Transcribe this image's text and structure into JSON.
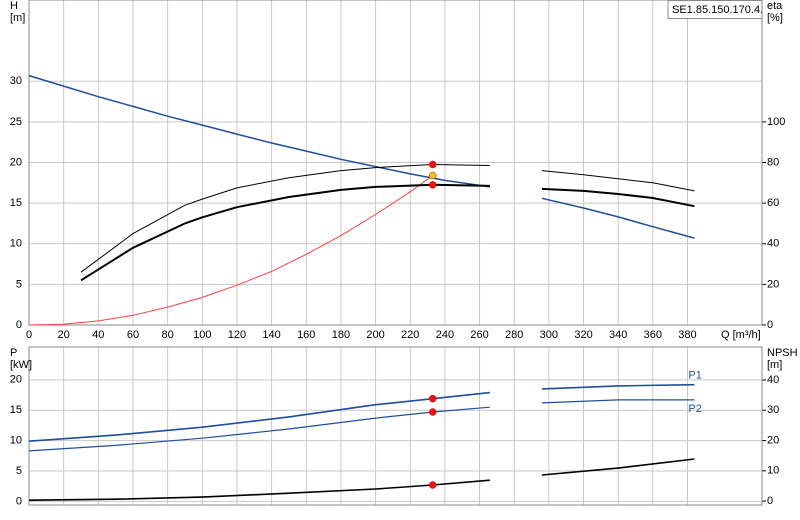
{
  "chart_data": [
    {
      "type": "line",
      "box_text": "SE1.85.150.170.4.",
      "y_label": "H",
      "y_unit": "[m]",
      "y2_label": "eta",
      "y2_unit": "[%]",
      "x_label": "Q [m³/h]",
      "xlim": [
        0,
        423
      ],
      "xticks": [
        0,
        20,
        40,
        60,
        80,
        100,
        120,
        140,
        160,
        180,
        200,
        220,
        240,
        260,
        280,
        300,
        320,
        340,
        360,
        380
      ],
      "ylim": [
        0,
        40
      ],
      "yticks": [
        0,
        5,
        10,
        15,
        20,
        25,
        30
      ],
      "y2lim": [
        0,
        160
      ],
      "y2ticks": [
        0,
        20,
        40,
        60,
        80,
        100
      ],
      "grid": true,
      "series": [
        {
          "color": "#1f4e9c",
          "width": 1.5,
          "x": [
            0,
            20,
            40,
            60,
            80,
            100,
            120,
            140,
            160,
            180,
            200,
            220,
            240,
            266,
            280,
            296,
            320,
            340,
            360,
            384
          ],
          "values": [
            30.7,
            29.4,
            28.1,
            26.9,
            25.7,
            24.6,
            23.5,
            22.4,
            21.4,
            20.4,
            19.5,
            18.6,
            17.8,
            17.0,
            null,
            15.6,
            14.4,
            13.3,
            12.1,
            10.7
          ]
        },
        {
          "color": "#ff4040",
          "width": 1,
          "x": [
            0,
            20,
            40,
            60,
            80,
            100,
            120,
            140,
            160,
            180,
            200,
            220,
            233
          ],
          "values": [
            0,
            0.1,
            0.5,
            1.2,
            2.2,
            3.4,
            4.9,
            6.6,
            8.7,
            11.0,
            13.6,
            16.4,
            18.4
          ]
        },
        {
          "color": "#000000",
          "width": 1,
          "axis": "y2",
          "x": [
            30,
            60,
            90,
            100,
            120,
            150,
            180,
            200,
            233,
            266,
            280,
            296,
            320,
            340,
            360,
            384
          ],
          "values": [
            26,
            45,
            59,
            62,
            67.5,
            72.5,
            76,
            77.5,
            79,
            78.5,
            null,
            76,
            74,
            72,
            70,
            66
          ]
        },
        {
          "color": "#000000",
          "width": 2,
          "axis": "y2",
          "x": [
            30,
            60,
            90,
            100,
            120,
            150,
            180,
            200,
            233,
            266,
            280,
            296,
            320,
            340,
            360,
            384
          ],
          "values": [
            22,
            38,
            50,
            53,
            58,
            63,
            66.5,
            68,
            69,
            68.5,
            null,
            67,
            66,
            64.5,
            62.5,
            58.5
          ]
        }
      ],
      "points": [
        {
          "x": 233,
          "y": 79,
          "axis": "y2",
          "color": "#ee1111"
        },
        {
          "x": 233,
          "y": 69,
          "axis": "y2",
          "color": "#ee1111"
        },
        {
          "x": 233,
          "y": 18.4,
          "color": "#f5c518"
        }
      ]
    },
    {
      "type": "line",
      "y_label": "P",
      "y_unit": "[kW]",
      "y2_label": "NPSH",
      "y2_unit": "[m]",
      "xlim": [
        0,
        423
      ],
      "xticks": [
        0,
        20,
        40,
        60,
        80,
        100,
        120,
        140,
        160,
        180,
        200,
        220,
        240,
        260,
        280,
        300,
        320,
        340,
        360,
        380
      ],
      "ylim": [
        -0.6,
        25.4
      ],
      "yticks": [
        0,
        5,
        10,
        15,
        20
      ],
      "y2lim": [
        -1.3,
        50.9
      ],
      "y2ticks": [
        0,
        10,
        20,
        30,
        40
      ],
      "grid": true,
      "series": [
        {
          "name": "P1",
          "color": "#1f4e9c",
          "width": 1.6,
          "x": [
            0,
            50,
            100,
            150,
            200,
            233,
            266,
            280,
            296,
            340,
            384
          ],
          "values": [
            9.9,
            10.9,
            12.2,
            13.9,
            15.9,
            16.9,
            17.9,
            null,
            18.5,
            19.0,
            19.2
          ]
        },
        {
          "name": "P2",
          "color": "#1f4e9c",
          "width": 1.2,
          "x": [
            0,
            50,
            100,
            150,
            200,
            233,
            266,
            280,
            296,
            340,
            384
          ],
          "values": [
            8.3,
            9.2,
            10.4,
            11.9,
            13.7,
            14.7,
            15.5,
            null,
            16.2,
            16.7,
            16.7
          ]
        },
        {
          "color": "#000000",
          "width": 1.6,
          "axis": "y2",
          "x": [
            0,
            50,
            100,
            150,
            200,
            233,
            266,
            280,
            296,
            340,
            384
          ],
          "values": [
            0.3,
            0.6,
            1.3,
            2.6,
            4.0,
            5.3,
            6.9,
            null,
            8.6,
            10.9,
            13.9
          ]
        }
      ],
      "points": [
        {
          "x": 233,
          "y": 16.9,
          "color": "#ee1111"
        },
        {
          "x": 233,
          "y": 14.7,
          "color": "#ee1111"
        },
        {
          "x": 233,
          "y": 5.3,
          "axis": "y2",
          "color": "#ee1111"
        }
      ]
    }
  ]
}
